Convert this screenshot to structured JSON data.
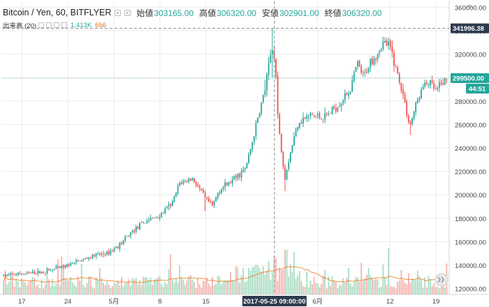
{
  "header": {
    "symbol": "Bitcoin / Yen, 60, BITFLYER",
    "open_label": "始値",
    "open_value": "303165.00",
    "high_label": "高値",
    "high_value": "306320.00",
    "low_label": "安値",
    "low_value": "302901.00",
    "close_label": "終値",
    "close_value": "306320.00"
  },
  "volume_legend": {
    "label": "出来高 (20)",
    "value": "1.413K",
    "ma_value": "656"
  },
  "colors": {
    "up": "#26a69a",
    "down": "#ef5350",
    "vol_up": "#a8dcc2",
    "vol_down": "#f6b2ae",
    "volume_ma": "#ef6c00",
    "grid": "#ececec",
    "crosshair": "#888888",
    "highlight_label": "#2e3b4e",
    "last_price_label": "#26a69a"
  },
  "icons": [
    "chart-settings-icon",
    "chart-visibility-icon",
    "chart-close-icon",
    "scroll-to-latest-icon"
  ],
  "crosshair_date_label": "2017-05-25 09:00:00",
  "crosshair_price_label": "341996.38",
  "last_price_label": "299500.00",
  "countdown_label": "44:51",
  "chart_data": {
    "type": "candlestick",
    "title": "Bitcoin / Yen, 60, BITFLYER",
    "y_axis": {
      "range": [
        115000,
        365000
      ],
      "ticks": [
        120000,
        140000,
        160000,
        180000,
        200000,
        220000,
        240000,
        260000,
        280000,
        300000,
        320000,
        340000,
        360000
      ],
      "tick_labels": [
        "120000.00",
        "140000.00",
        "160000.00",
        "180000.00",
        "200000.00",
        "220000.00",
        "240000.00",
        "260000.00",
        "280000.00",
        "300000.00",
        "320000.00",
        "340000.00",
        "360000.00"
      ]
    },
    "x_axis": {
      "range": [
        "2017-04-14",
        "2017-06-21"
      ],
      "tick_labels": [
        "17",
        "24",
        "5月",
        "8",
        "15",
        "6月",
        "12",
        "19"
      ],
      "tick_dates": [
        "2017-04-17",
        "2017-04-24",
        "2017-05-01",
        "2017-05-08",
        "2017-05-15",
        "2017-06-01",
        "2017-06-12",
        "2017-06-19"
      ]
    },
    "price_path": [
      [
        "2017-04-14",
        131000
      ],
      [
        "2017-04-17",
        132500
      ],
      [
        "2017-04-20",
        134000
      ],
      [
        "2017-04-23",
        138000
      ],
      [
        "2017-04-26",
        144000
      ],
      [
        "2017-04-28",
        148000
      ],
      [
        "2017-04-30",
        150000
      ],
      [
        "2017-05-02",
        158000
      ],
      [
        "2017-05-04",
        170000
      ],
      [
        "2017-05-06",
        178000
      ],
      [
        "2017-05-08",
        182000
      ],
      [
        "2017-05-10",
        194000
      ],
      [
        "2017-05-11",
        210000
      ],
      [
        "2017-05-13",
        214000
      ],
      [
        "2017-05-15",
        196000
      ],
      [
        "2017-05-16",
        190000
      ],
      [
        "2017-05-17",
        204000
      ],
      [
        "2017-05-19",
        212000
      ],
      [
        "2017-05-21",
        222000
      ],
      [
        "2017-05-22",
        244000
      ],
      [
        "2017-05-23",
        268000
      ],
      [
        "2017-05-24",
        290000
      ],
      [
        "2017-05-25",
        325000
      ],
      [
        "2017-05-25T12",
        318000
      ],
      [
        "2017-05-26",
        260000
      ],
      [
        "2017-05-27",
        215000
      ],
      [
        "2017-05-28",
        240000
      ],
      [
        "2017-05-29",
        262000
      ],
      [
        "2017-05-31",
        268000
      ],
      [
        "2017-06-02",
        266000
      ],
      [
        "2017-06-04",
        276000
      ],
      [
        "2017-06-06",
        290000
      ],
      [
        "2017-06-07",
        312000
      ],
      [
        "2017-06-08",
        300000
      ],
      [
        "2017-06-09",
        314000
      ],
      [
        "2017-06-10",
        320000
      ],
      [
        "2017-06-11",
        330000
      ],
      [
        "2017-06-12",
        326000
      ],
      [
        "2017-06-13",
        306000
      ],
      [
        "2017-06-14",
        285000
      ],
      [
        "2017-06-15",
        258000
      ],
      [
        "2017-06-16",
        278000
      ],
      [
        "2017-06-17",
        292000
      ],
      [
        "2017-06-18",
        296000
      ],
      [
        "2017-06-19",
        288000
      ],
      [
        "2017-06-20",
        296000
      ],
      [
        "2017-06-21",
        299500
      ]
    ],
    "last_price": 299500,
    "crosshair": {
      "x": "2017-05-25 09:00:00",
      "y": 341996.38
    },
    "volume_series": {
      "name": "出来高 (20)",
      "last": 1413,
      "ma_last": 656
    },
    "grid": true
  }
}
